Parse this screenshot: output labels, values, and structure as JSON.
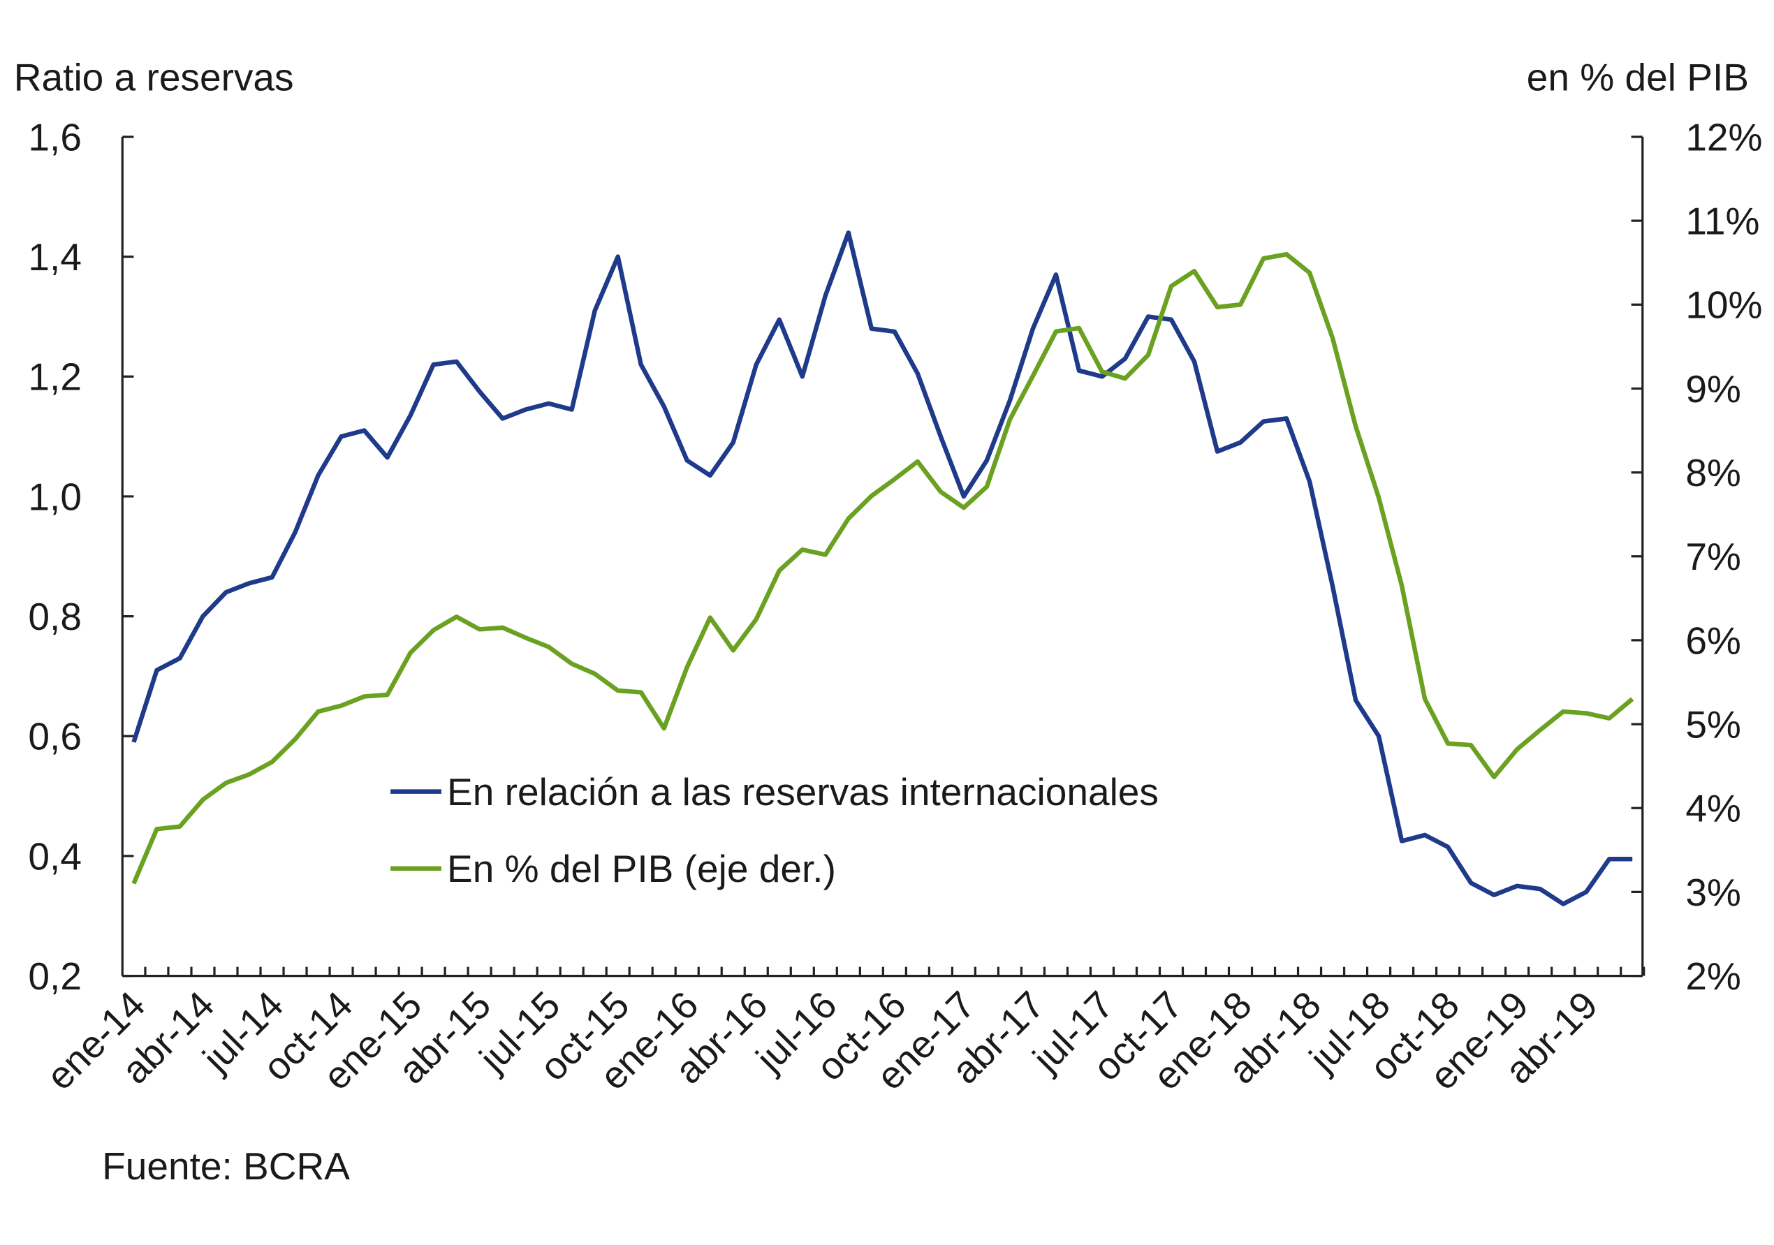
{
  "chart_data": {
    "type": "line",
    "y_title": "Ratio a reservas",
    "y2_title": "en % del PIB",
    "source": "Fuente: BCRA",
    "categories": [
      "ene-14",
      null,
      null,
      "abr-14",
      null,
      null,
      "jul-14",
      null,
      null,
      "oct-14",
      null,
      null,
      "ene-15",
      null,
      null,
      "abr-15",
      null,
      null,
      "jul-15",
      null,
      null,
      "oct-15",
      null,
      null,
      "ene-16",
      null,
      null,
      "abr-16",
      null,
      null,
      "jul-16",
      null,
      null,
      "oct-16",
      null,
      null,
      "ene-17",
      null,
      null,
      "abr-17",
      null,
      null,
      "jul-17",
      null,
      null,
      "oct-17",
      null,
      null,
      "ene-18",
      null,
      null,
      "abr-18",
      null,
      null,
      "jul-18",
      null,
      null,
      "oct-18",
      null,
      null,
      "ene-19",
      null,
      null,
      "abr-19",
      null,
      null
    ],
    "series": [
      {
        "name": "En relación a las reservas internacionales",
        "color": "#1f3a8a",
        "values": [
          0.59,
          0.71,
          0.73,
          0.8,
          0.84,
          0.855,
          0.865,
          0.94,
          1.035,
          1.1,
          1.11,
          1.065,
          1.135,
          1.22,
          1.225,
          1.175,
          1.13,
          1.145,
          1.155,
          1.145,
          1.31,
          1.4,
          1.22,
          1.15,
          1.06,
          1.035,
          1.09,
          1.22,
          1.295,
          1.2,
          1.335,
          1.44,
          1.28,
          1.275,
          1.205,
          1.1,
          1.0,
          1.06,
          1.16,
          1.28,
          1.37,
          1.21,
          1.2,
          1.23,
          1.3,
          1.295,
          1.225,
          1.075,
          1.09,
          1.125,
          1.13,
          1.025,
          0.85,
          0.66,
          0.6,
          0.425,
          0.435,
          0.415,
          0.355,
          0.335,
          0.35,
          0.345,
          0.32,
          0.34,
          0.395,
          0.395
        ]
      },
      {
        "name": "En % del PIB (eje der.)",
        "color": "#6aa121",
        "axis": "y2",
        "values": [
          3.1,
          3.75,
          3.78,
          4.1,
          4.3,
          4.4,
          4.55,
          4.82,
          5.15,
          5.22,
          5.33,
          5.35,
          5.85,
          6.12,
          6.28,
          6.13,
          6.15,
          6.03,
          5.92,
          5.72,
          5.6,
          5.4,
          5.38,
          4.95,
          5.68,
          6.27,
          5.88,
          6.25,
          6.83,
          7.08,
          7.02,
          7.45,
          7.72,
          7.92,
          8.13,
          7.77,
          7.58,
          7.83,
          8.63,
          9.15,
          9.68,
          9.72,
          9.2,
          9.12,
          9.4,
          10.22,
          10.4,
          9.97,
          10.0,
          10.55,
          10.6,
          10.38,
          9.6,
          8.55,
          7.7,
          6.65,
          5.3,
          4.77,
          4.75,
          4.37,
          4.7,
          4.93,
          5.15,
          5.13,
          5.07,
          5.3
        ]
      }
    ],
    "ylim": [
      0.2,
      1.6
    ],
    "yticks": [
      {
        "value": 0.2,
        "label": "0,2"
      },
      {
        "value": 0.4,
        "label": "0,4"
      },
      {
        "value": 0.6,
        "label": "0,6"
      },
      {
        "value": 0.8,
        "label": "0,8"
      },
      {
        "value": 1.0,
        "label": "1,0"
      },
      {
        "value": 1.2,
        "label": "1,2"
      },
      {
        "value": 1.4,
        "label": "1,4"
      },
      {
        "value": 1.6,
        "label": "1,6"
      }
    ],
    "y2lim": [
      2,
      12
    ],
    "y2ticks": [
      {
        "value": 2,
        "label": "2%"
      },
      {
        "value": 3,
        "label": "3%"
      },
      {
        "value": 4,
        "label": "4%"
      },
      {
        "value": 5,
        "label": "5%"
      },
      {
        "value": 6,
        "label": "6%"
      },
      {
        "value": 7,
        "label": "7%"
      },
      {
        "value": 8,
        "label": "8%"
      },
      {
        "value": 9,
        "label": "9%"
      },
      {
        "value": 10,
        "label": "10%"
      },
      {
        "value": 11,
        "label": "11%"
      },
      {
        "value": 12,
        "label": "12%"
      }
    ],
    "grid": false
  }
}
